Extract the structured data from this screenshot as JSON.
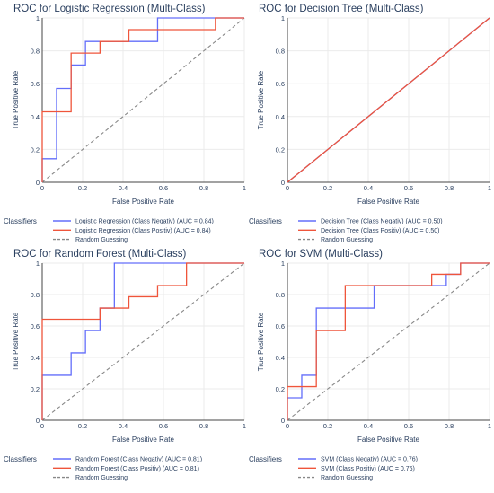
{
  "chart_data": [
    {
      "type": "line",
      "title": "ROC for Logistic Regression (Multi-Class)",
      "xlabel": "False Positive Rate",
      "ylabel": "True Positive Rate",
      "xlim": [
        0,
        1
      ],
      "ylim": [
        0,
        1
      ],
      "x_ticks": [
        "0",
        "0.2",
        "0.4",
        "0.6",
        "0.8",
        "1"
      ],
      "y_ticks": [
        "0",
        "0.2",
        "0.4",
        "0.6",
        "0.8",
        "1"
      ],
      "grid": true,
      "legend": {
        "title": "Classifiers",
        "placement": "bottom"
      },
      "series": [
        {
          "name": "Logistic Regression (Class Negativ) (AUC = 0.84)",
          "color": "#636efa",
          "x": [
            0,
            0,
            0.071,
            0.071,
            0.143,
            0.143,
            0.214,
            0.214,
            0.571,
            0.571,
            1.0
          ],
          "y": [
            0,
            0.143,
            0.143,
            0.571,
            0.571,
            0.714,
            0.714,
            0.857,
            0.857,
            1.0,
            1.0
          ]
        },
        {
          "name": "Logistic Regression (Class Positiv) (AUC = 0.84)",
          "color": "#ef553b",
          "x": [
            0,
            0,
            0.143,
            0.143,
            0.286,
            0.286,
            0.429,
            0.429,
            0.857,
            0.857,
            1.0
          ],
          "y": [
            0,
            0.429,
            0.429,
            0.786,
            0.786,
            0.857,
            0.857,
            0.929,
            0.929,
            1.0,
            1.0
          ]
        },
        {
          "name": "Random Guessing",
          "color": "#888888",
          "dash": true,
          "x": [
            0,
            1
          ],
          "y": [
            0,
            1
          ]
        }
      ]
    },
    {
      "type": "line",
      "title": "ROC for Decision Tree (Multi-Class)",
      "xlabel": "False Positive Rate",
      "ylabel": "True Positive Rate",
      "xlim": [
        0,
        1
      ],
      "ylim": [
        0,
        1
      ],
      "x_ticks": [
        "0",
        "0.2",
        "0.4",
        "0.6",
        "0.8",
        "1"
      ],
      "y_ticks": [
        "0",
        "0.2",
        "0.4",
        "0.6",
        "0.8",
        "1"
      ],
      "grid": true,
      "legend": {
        "title": "Classifiers",
        "placement": "bottom"
      },
      "series": [
        {
          "name": "Decision Tree (Class Negativ) (AUC = 0.50)",
          "color": "#636efa",
          "x": [
            0,
            1
          ],
          "y": [
            0,
            1
          ]
        },
        {
          "name": "Decision Tree (Class Positiv) (AUC = 0.50)",
          "color": "#ef553b",
          "x": [
            0,
            1
          ],
          "y": [
            0,
            1
          ]
        },
        {
          "name": "Random Guessing",
          "color": "#888888",
          "dash": true,
          "x": [
            0,
            1
          ],
          "y": [
            0,
            1
          ]
        }
      ]
    },
    {
      "type": "line",
      "title": "ROC for Random Forest (Multi-Class)",
      "xlabel": "False Positive Rate",
      "ylabel": "True Positive Rate",
      "xlim": [
        0,
        1
      ],
      "ylim": [
        0,
        1
      ],
      "x_ticks": [
        "0",
        "0.2",
        "0.4",
        "0.6",
        "0.8",
        "1"
      ],
      "y_ticks": [
        "0",
        "0.2",
        "0.4",
        "0.6",
        "0.8",
        "1"
      ],
      "grid": true,
      "legend": {
        "title": "Classifiers",
        "placement": "bottom"
      },
      "series": [
        {
          "name": "Random Forest (Class Negativ) (AUC = 0.81)",
          "color": "#636efa",
          "x": [
            0,
            0,
            0.143,
            0.143,
            0.214,
            0.214,
            0.286,
            0.286,
            0.357,
            0.357,
            1.0
          ],
          "y": [
            0,
            0.286,
            0.286,
            0.429,
            0.429,
            0.571,
            0.571,
            0.714,
            0.714,
            1.0,
            1.0
          ]
        },
        {
          "name": "Random Forest (Class Positiv) (AUC = 0.81)",
          "color": "#ef553b",
          "x": [
            0,
            0,
            0.286,
            0.286,
            0.429,
            0.429,
            0.571,
            0.571,
            0.714,
            0.714,
            1.0
          ],
          "y": [
            0,
            0.643,
            0.643,
            0.714,
            0.714,
            0.786,
            0.786,
            0.857,
            0.857,
            1.0,
            1.0
          ]
        },
        {
          "name": "Random Guessing",
          "color": "#888888",
          "dash": true,
          "x": [
            0,
            1
          ],
          "y": [
            0,
            1
          ]
        }
      ]
    },
    {
      "type": "line",
      "title": "ROC for SVM (Multi-Class)",
      "xlabel": "False Positive Rate",
      "ylabel": "True Positive Rate",
      "xlim": [
        0,
        1
      ],
      "ylim": [
        0,
        1
      ],
      "x_ticks": [
        "0",
        "0.2",
        "0.4",
        "0.6",
        "0.8",
        "1"
      ],
      "y_ticks": [
        "0",
        "0.2",
        "0.4",
        "0.6",
        "0.8",
        "1"
      ],
      "grid": true,
      "legend": {
        "title": "Classifiers",
        "placement": "bottom"
      },
      "series": [
        {
          "name": "SVM (Class Negativ) (AUC = 0.76)",
          "color": "#636efa",
          "x": [
            0,
            0,
            0.071,
            0.071,
            0.143,
            0.143,
            0.429,
            0.429,
            0.786,
            0.786,
            0.857,
            0.857,
            1.0
          ],
          "y": [
            0,
            0.143,
            0.143,
            0.286,
            0.286,
            0.714,
            0.714,
            0.857,
            0.857,
            0.929,
            0.929,
            1.0,
            1.0
          ]
        },
        {
          "name": "SVM (Class Positiv) (AUC = 0.76)",
          "color": "#ef553b",
          "x": [
            0,
            0,
            0.143,
            0.143,
            0.286,
            0.286,
            0.714,
            0.714,
            0.857,
            0.857,
            1.0
          ],
          "y": [
            0,
            0.214,
            0.214,
            0.571,
            0.571,
            0.857,
            0.857,
            0.929,
            0.929,
            1.0,
            1.0
          ]
        },
        {
          "name": "Random Guessing",
          "color": "#888888",
          "dash": true,
          "x": [
            0,
            1
          ],
          "y": [
            0,
            1
          ]
        }
      ]
    }
  ]
}
